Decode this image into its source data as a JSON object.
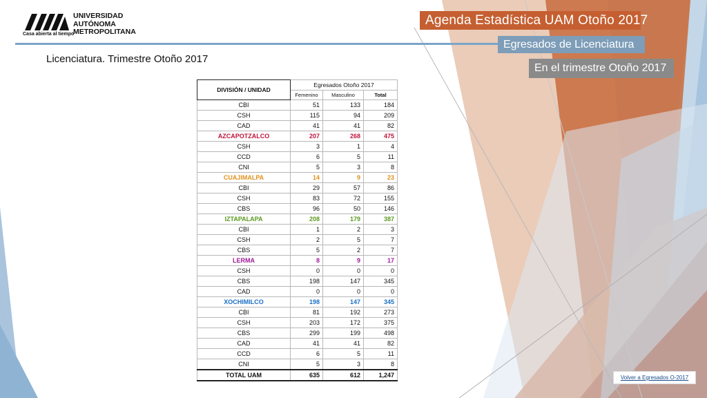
{
  "header": {
    "university_name": [
      "UNIVERSIDAD",
      "AUTÓNOMA",
      "METROPOLITANA"
    ],
    "tagline": "Casa abierta al tiempo",
    "banner_title": "Agenda Estadística UAM  Otoño 2017",
    "banner_section": "Egresados de Licenciatura",
    "banner_period": "En el trimestre Otoño 2017"
  },
  "subtitle": "Licenciatura. Trimestre Otoño 2017",
  "table": {
    "col_division": "DIVISIÓN / UNIDAD",
    "col_group": "Egresados Otoño 2017",
    "col_fem": "Femenino",
    "col_mas": "Masculino",
    "col_total": "Total",
    "rows": [
      {
        "name": "CBI",
        "f": "51",
        "m": "133",
        "t": "184"
      },
      {
        "name": "CSH",
        "f": "115",
        "m": "94",
        "t": "209"
      },
      {
        "name": "CAD",
        "f": "41",
        "m": "41",
        "t": "82"
      },
      {
        "name": "AZCAPOTZALCO",
        "f": "207",
        "m": "268",
        "t": "475",
        "unit": true,
        "color": "#c0143c"
      },
      {
        "name": "CSH",
        "f": "3",
        "m": "1",
        "t": "4"
      },
      {
        "name": "CCD",
        "f": "6",
        "m": "5",
        "t": "11"
      },
      {
        "name": "CNI",
        "f": "5",
        "m": "3",
        "t": "8"
      },
      {
        "name": "CUAJIMALPA",
        "f": "14",
        "m": "9",
        "t": "23",
        "unit": true,
        "color": "#e0911b"
      },
      {
        "name": "CBI",
        "f": "29",
        "m": "57",
        "t": "86"
      },
      {
        "name": "CSH",
        "f": "83",
        "m": "72",
        "t": "155"
      },
      {
        "name": "CBS",
        "f": "96",
        "m": "50",
        "t": "146"
      },
      {
        "name": "IZTAPALAPA",
        "f": "208",
        "m": "179",
        "t": "387",
        "unit": true,
        "color": "#5a9a1f"
      },
      {
        "name": "CBI",
        "f": "1",
        "m": "2",
        "t": "3"
      },
      {
        "name": "CSH",
        "f": "2",
        "m": "5",
        "t": "7"
      },
      {
        "name": "CBS",
        "f": "5",
        "m": "2",
        "t": "7"
      },
      {
        "name": "LERMA",
        "f": "8",
        "m": "9",
        "t": "17",
        "unit": true,
        "color": "#a0199a"
      },
      {
        "name": "CSH",
        "f": "0",
        "m": "0",
        "t": "0"
      },
      {
        "name": "CBS",
        "f": "198",
        "m": "147",
        "t": "345"
      },
      {
        "name": "CAD",
        "f": "0",
        "m": "0",
        "t": "0"
      },
      {
        "name": "XOCHIMILCO",
        "f": "198",
        "m": "147",
        "t": "345",
        "unit": true,
        "color": "#1a6fc4"
      },
      {
        "name": "CBI",
        "f": "81",
        "m": "192",
        "t": "273"
      },
      {
        "name": "CSH",
        "f": "203",
        "m": "172",
        "t": "375"
      },
      {
        "name": "CBS",
        "f": "299",
        "m": "199",
        "t": "498"
      },
      {
        "name": "CAD",
        "f": "41",
        "m": "41",
        "t": "82"
      },
      {
        "name": "CCD",
        "f": "6",
        "m": "5",
        "t": "11"
      },
      {
        "name": "CNI",
        "f": "5",
        "m": "3",
        "t": "8"
      }
    ],
    "total": {
      "name": "TOTAL UAM",
      "f": "635",
      "m": "612",
      "t": "1,247"
    }
  },
  "back_link": "Volver a Egresados O-2017",
  "colors": {
    "orange": "#c55f31",
    "blue_gray": "#7d9db8",
    "gray": "#8a8a8a",
    "rule_blue": "#7aa5c8"
  }
}
